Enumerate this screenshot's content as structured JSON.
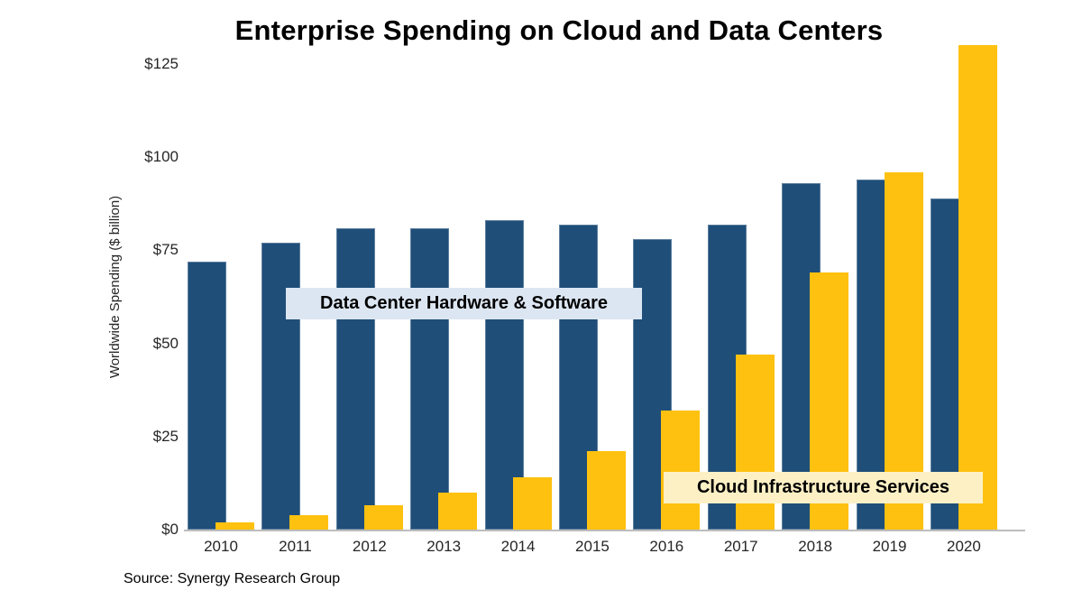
{
  "title": "Enterprise Spending on Cloud and Data Centers",
  "source": "Source: Synergy Research Group",
  "labels": {
    "datacenter_box": "Data Center Hardware & Software",
    "cloud_box": "Cloud Infrastructure Services"
  },
  "colors": {
    "datacenter": "#1F4E79",
    "cloud": "#FFC110",
    "datacenter_label_bg": "#DCE6F2",
    "cloud_label_bg": "#FDF0C5",
    "axis_line": "#BDBDBD"
  },
  "chart_data": {
    "type": "bar",
    "title": "Enterprise Spending on Cloud and Data Centers",
    "xlabel": "",
    "ylabel": "Worldwide Spending ($ billion)",
    "categories": [
      "2010",
      "2011",
      "2012",
      "2013",
      "2014",
      "2015",
      "2016",
      "2017",
      "2018",
      "2019",
      "2020"
    ],
    "series": [
      {
        "name": "Data Center Hardware & Software",
        "color": "#1F4E79",
        "values": [
          72,
          77,
          81,
          81,
          83,
          82,
          78,
          82,
          93,
          94,
          89
        ]
      },
      {
        "name": "Cloud Infrastructure Services",
        "color": "#FFC110",
        "values": [
          2,
          4,
          6.5,
          10,
          14,
          21,
          32,
          47,
          69,
          96,
          130
        ]
      }
    ],
    "yticks": [
      0,
      25,
      50,
      75,
      100,
      125
    ],
    "ytick_labels": [
      "$0",
      "$25",
      "$50",
      "$75",
      "$100",
      "$125"
    ],
    "ylim": [
      0,
      131
    ],
    "grid": false,
    "legend": "inline-label-boxes"
  }
}
